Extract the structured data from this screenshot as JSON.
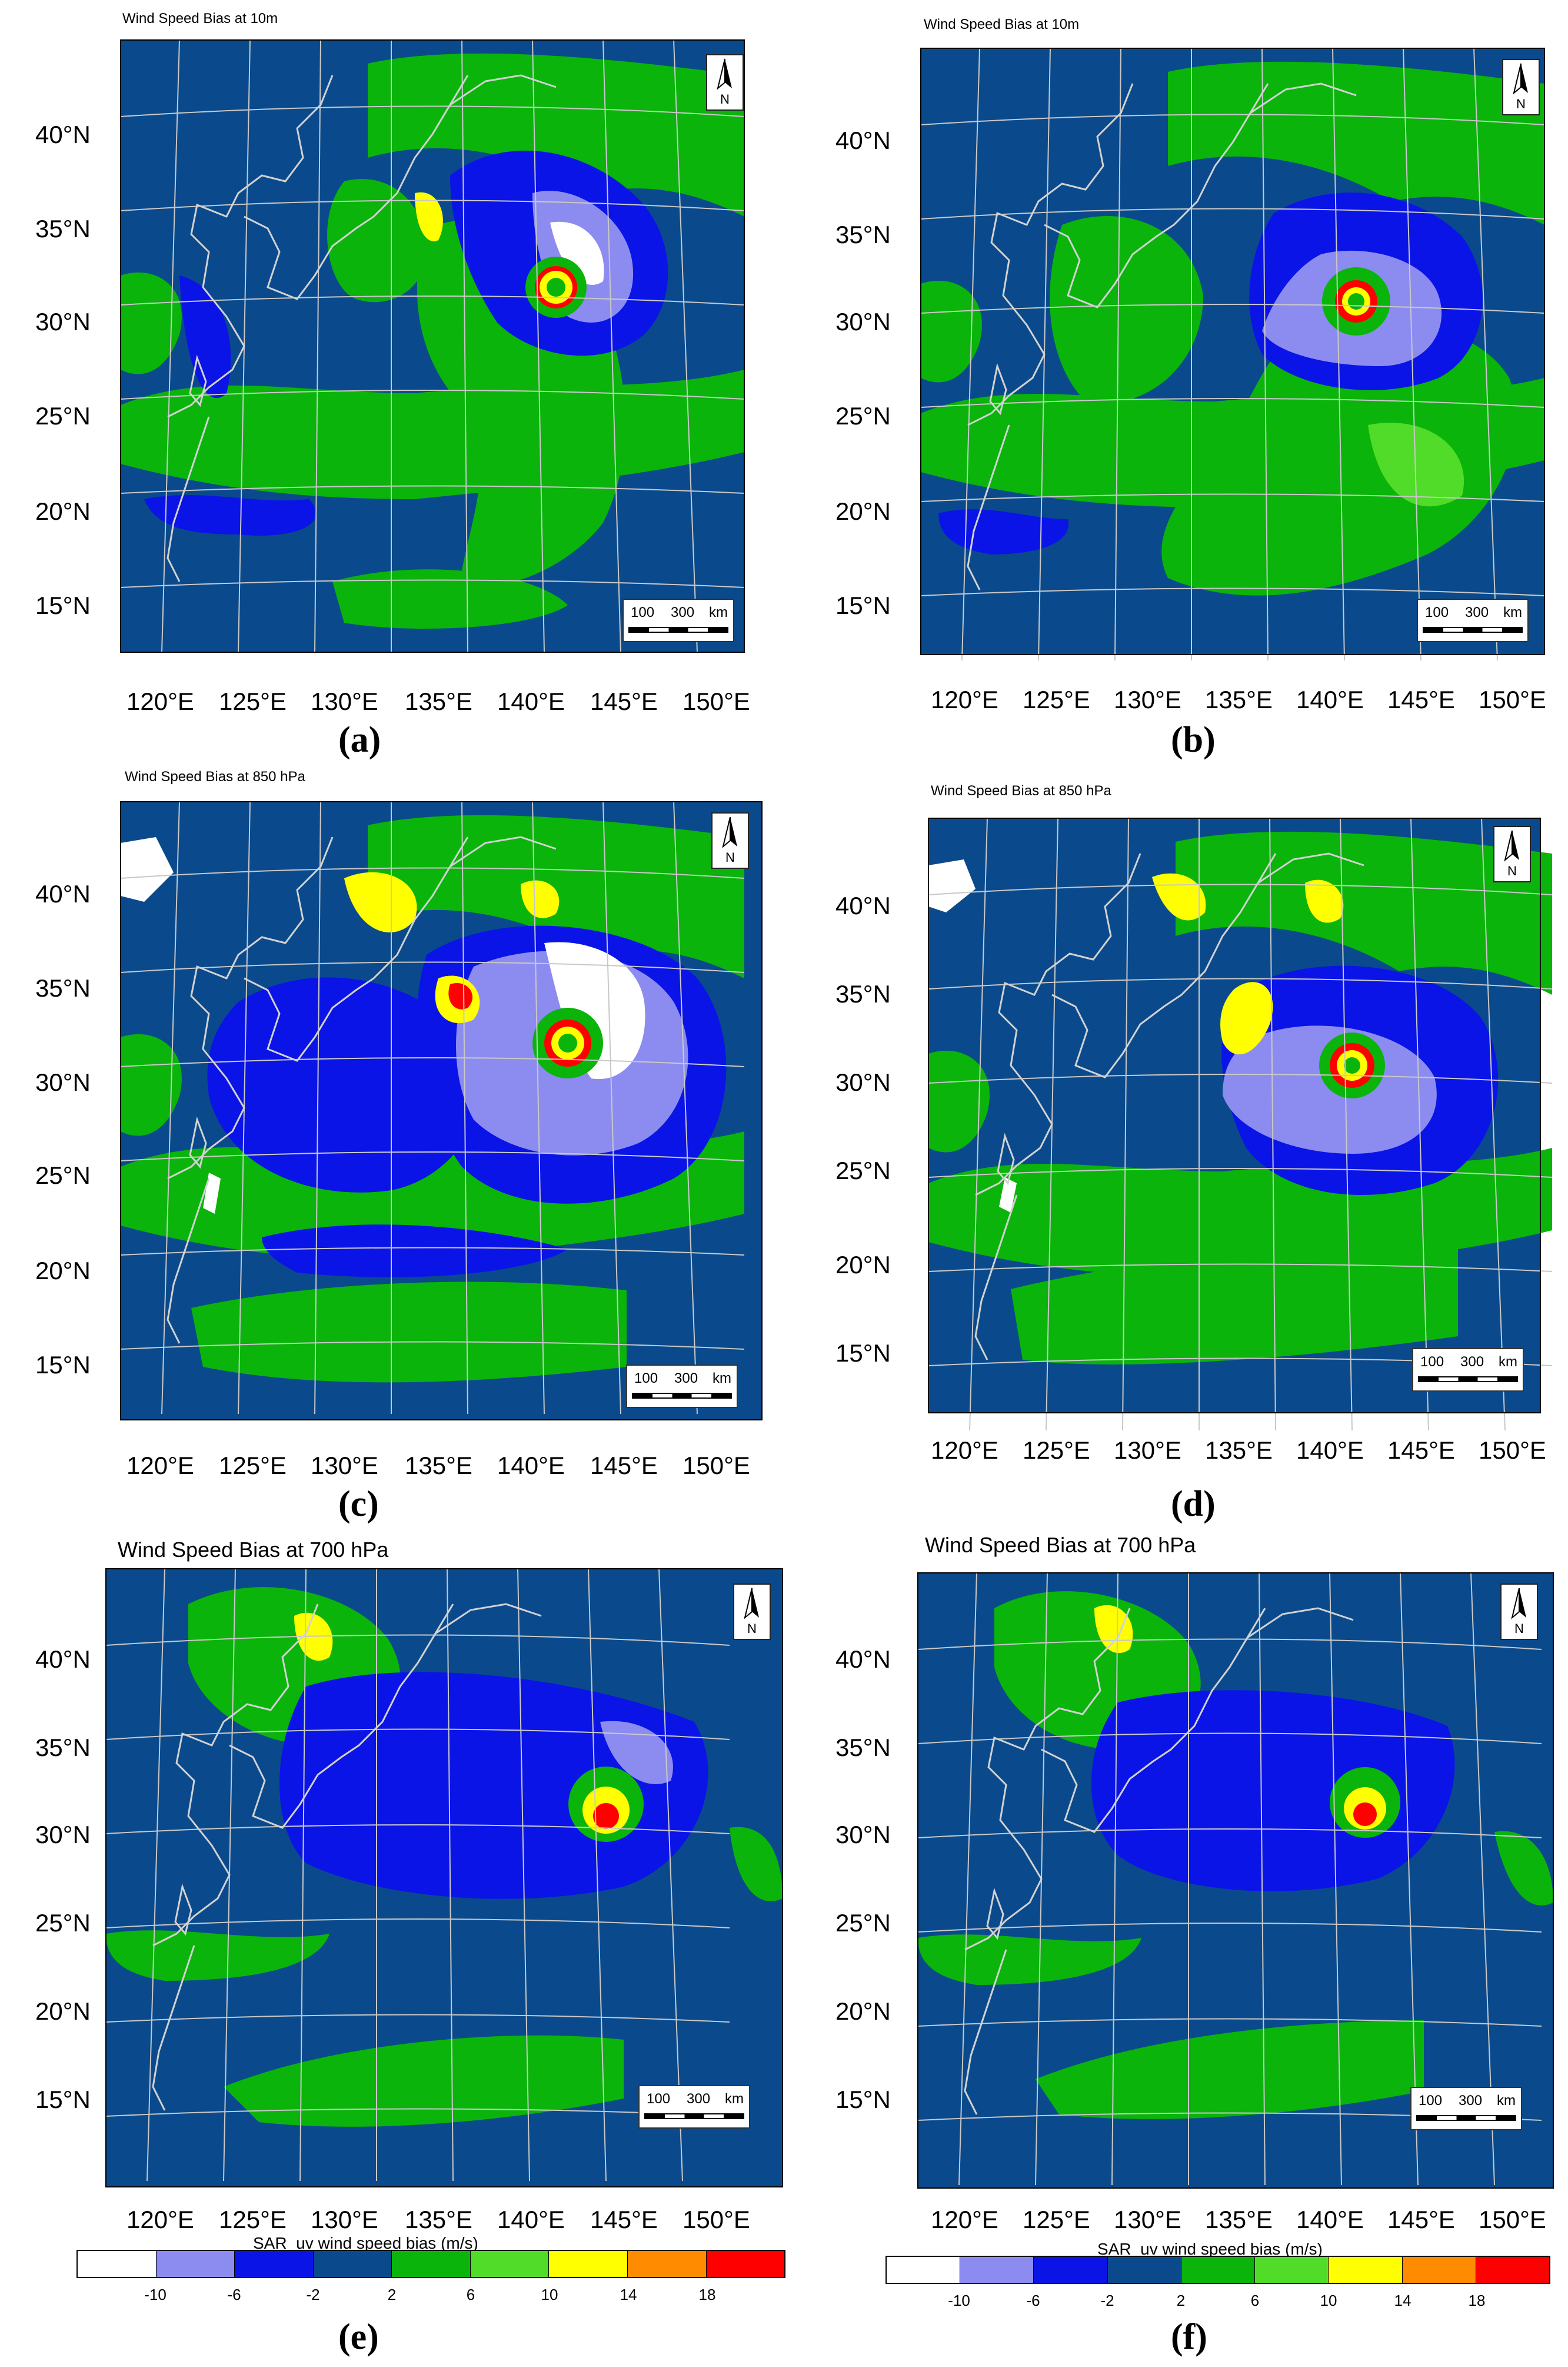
{
  "panels": [
    {
      "id": "a",
      "title": "Wind Speed Bias  at 10m",
      "label": "(a)"
    },
    {
      "id": "b",
      "title": "Wind Speed Bias  at 10m",
      "label": "(b)"
    },
    {
      "id": "c",
      "title": "Wind Speed Bias  at 850 hPa",
      "label": "(c)"
    },
    {
      "id": "d",
      "title": "Wind Speed Bias  at 850 hPa",
      "label": "(d)"
    },
    {
      "id": "e",
      "title": "Wind Speed Bias  at 700 hPa",
      "label": "(e)"
    },
    {
      "id": "f",
      "title": "Wind Speed Bias  at 700 hPa",
      "label": "(f)"
    }
  ],
  "lat_labels": [
    "40°N",
    "35°N",
    "30°N",
    "25°N",
    "20°N",
    "15°N"
  ],
  "lon_labels": [
    "120°E",
    "125°E",
    "130°E",
    "135°E",
    "140°E",
    "145°E",
    "150°E"
  ],
  "north_arrow": "N",
  "scale_bar": {
    "t1": "100",
    "t2": "300",
    "unit": "km"
  },
  "colorbar": {
    "title": "SAR_uv wind speed bias (m/s)",
    "ticks": [
      "-10",
      "-6",
      "-2",
      "2",
      "6",
      "10",
      "14",
      "18"
    ],
    "colors": [
      "#ffffff",
      "#8c8cf0",
      "#0a14e6",
      "#0a4a8c",
      "#0ab40a",
      "#50dc28",
      "#ffff00",
      "#ff8c00",
      "#ff0000"
    ]
  },
  "map_colors": {
    "ocean": "#0a4a8c",
    "green": "#0ab40a",
    "lightgreen": "#50dc28",
    "blue": "#0a14e6",
    "lilac": "#8c8cf0",
    "white": "#ffffff",
    "yellow": "#ffff00",
    "orange": "#ff8c00",
    "red": "#ff0000",
    "grid": "#c8c8c8",
    "coast": "#d2d2d2"
  }
}
